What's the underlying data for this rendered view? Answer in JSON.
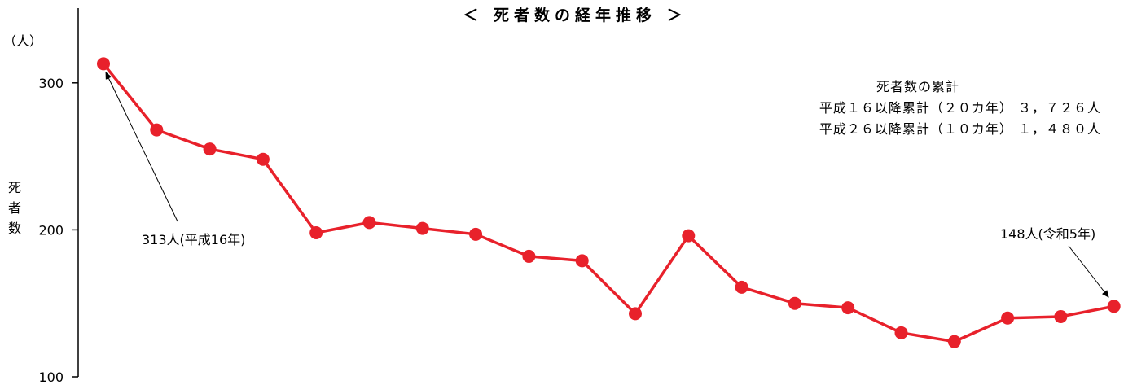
{
  "chart_data": {
    "type": "line",
    "title": "＜ 死者数の経年推移 ＞",
    "y_unit": "（人）",
    "ylabel": "死者数",
    "ylim": [
      100,
      350
    ],
    "yticks": [
      100,
      200,
      300
    ],
    "grid": false,
    "series": [
      {
        "color": "#e8212b",
        "values": [
          313,
          268,
          255,
          248,
          198,
          205,
          201,
          197,
          182,
          179,
          143,
          196,
          161,
          150,
          147,
          130,
          124,
          140,
          141,
          148
        ]
      }
    ],
    "annotations": [
      {
        "text": "313人(平成16年)",
        "point_index": 0
      },
      {
        "text": "148人(令和5年)",
        "point_index": 19
      }
    ],
    "summary": {
      "heading": "死者数の累計",
      "line1": "平成１６以降累計（２０カ年） ３，７２６人",
      "line2": "平成２６以降累計（１０カ年） １，４８０人"
    }
  }
}
